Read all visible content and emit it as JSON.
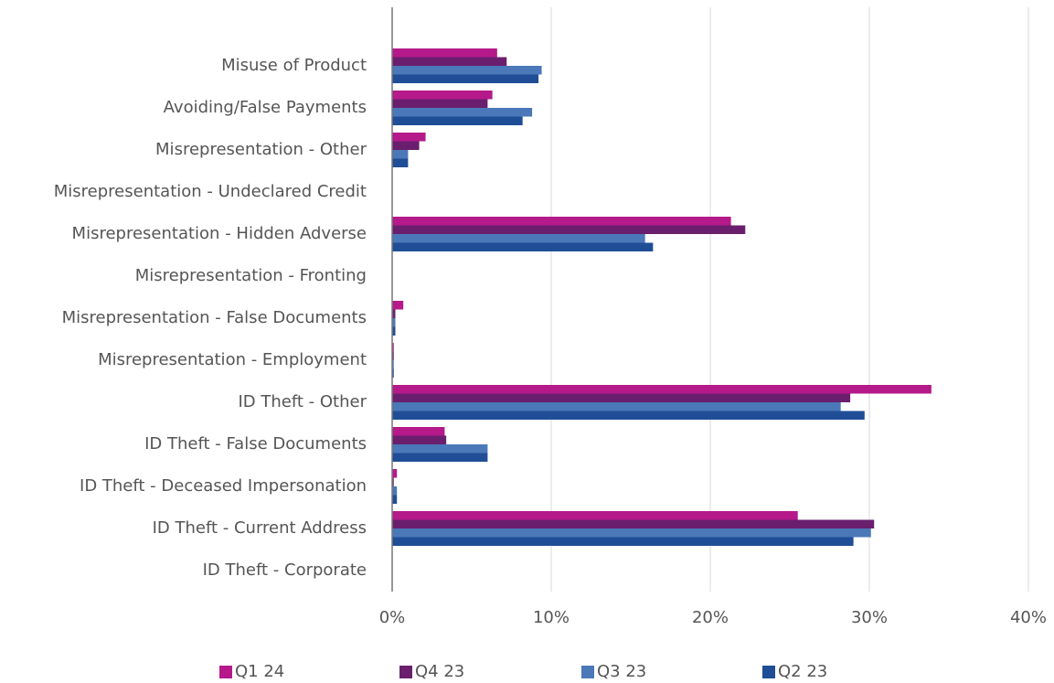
{
  "chart_data": {
    "type": "hbar",
    "categories": [
      "Misuse of Product",
      "Avoiding/False Payments",
      "Misrepresentation - Other",
      "Misrepresentation - Undeclared Credit",
      "Misrepresentation - Hidden Adverse",
      "Misrepresentation - Fronting",
      "Misrepresentation - False Documents",
      "Misrepresentation - Employment",
      "ID Theft - Other",
      "ID Theft - False Documents",
      "ID Theft - Deceased Impersonation",
      "ID Theft - Current Address",
      "ID Theft - Corporate"
    ],
    "series": [
      {
        "name": "Q1 24",
        "color": "#b5198a",
        "values": [
          6.6,
          6.3,
          2.1,
          0,
          21.3,
          0,
          0.7,
          0.1,
          33.9,
          3.3,
          0.3,
          25.5,
          0
        ]
      },
      {
        "name": "Q4 23",
        "color": "#6a1f6e",
        "values": [
          7.2,
          6.0,
          1.7,
          0,
          22.2,
          0,
          0.2,
          0.1,
          28.8,
          3.4,
          0.1,
          30.3,
          0
        ]
      },
      {
        "name": "Q3 23",
        "color": "#4a78b8",
        "values": [
          9.4,
          8.8,
          1.0,
          0,
          15.9,
          0,
          0.2,
          0.1,
          28.2,
          6.0,
          0.3,
          30.1,
          0
        ]
      },
      {
        "name": "Q2 23",
        "color": "#1f4e96",
        "values": [
          9.2,
          8.2,
          1.0,
          0,
          16.4,
          0,
          0.2,
          0.1,
          29.7,
          6.0,
          0.3,
          29.0,
          0
        ]
      }
    ],
    "xlim": [
      0,
      40
    ],
    "xticks": [
      {
        "value": 0,
        "label": "0%"
      },
      {
        "value": 10,
        "label": "10%"
      },
      {
        "value": 20,
        "label": "20%"
      },
      {
        "value": 30,
        "label": "30%"
      },
      {
        "value": 40,
        "label": "40%"
      }
    ],
    "grid": true,
    "legend": "bottom"
  }
}
